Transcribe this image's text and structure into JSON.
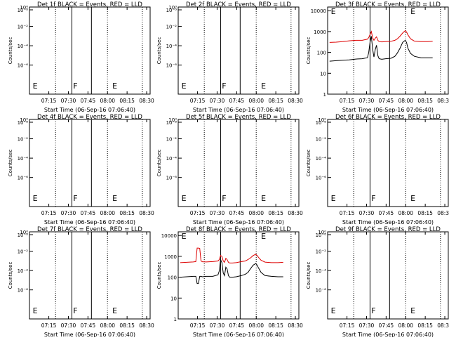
{
  "common": {
    "ylabel": "Counts/sec",
    "xlabel": "Start Time (06-Sep-16 07:06:40)",
    "xticks": [
      "07:15",
      "07:30",
      "07:45",
      "08:00",
      "08:15",
      "08:30"
    ],
    "log_ticks": [
      "10⁻⁸",
      "10⁻⁶",
      "10⁻⁴",
      "10⁻²",
      "10⁰"
    ],
    "marker_E": "E",
    "marker_F": "F",
    "colors": {
      "events": "#000000",
      "lld": "#dd0000"
    }
  },
  "chart_data": [
    {
      "type": "line",
      "title": "Det 1f BLACK = Events, RED = LLD",
      "xlabel": "Start Time (06-Sep-16 07:06:40)",
      "ylabel": "Counts/sec",
      "empty": true,
      "ylim": [
        1e-09,
        1
      ],
      "yscale": "log",
      "series": [],
      "solid_lines_min": [
        26.0,
        41.0
      ],
      "dotted_lines_min": [
        13.5,
        53.3
      ],
      "end_dotted_min": 80.0,
      "E_positions_min": [
        -4,
        57
      ],
      "F_position_min": 27
    },
    {
      "type": "line",
      "title": "Det 2f BLACK = Events, RED = LLD",
      "xlabel": "Start Time (06-Sep-16 07:06:40)",
      "ylabel": "Counts/sec",
      "empty": true,
      "ylim": [
        1e-09,
        1
      ],
      "yscale": "log",
      "series": [],
      "solid_lines_min": [
        26.0,
        41.0
      ],
      "dotted_lines_min": [
        13.5,
        53.3
      ],
      "end_dotted_min": 80.0,
      "E_positions_min": [
        -4,
        57
      ],
      "F_position_min": 27
    },
    {
      "type": "line",
      "title": "Det 3f BLACK = Events, RED = LLD",
      "xlabel": "Start Time (06-Sep-16 07:06:40)",
      "ylabel": "Counts/sec",
      "empty": false,
      "ylim": [
        1,
        15000
      ],
      "yscale": "log",
      "y_ticks": [
        "1",
        "10",
        "100",
        "1000",
        "10000"
      ],
      "solid_lines_min": [
        26.0,
        41.0
      ],
      "dotted_lines_min": [
        13.5,
        53.3
      ],
      "end_dotted_min": 80.0,
      "E_positions_min": [
        -4,
        57
      ],
      "F_position_min": 27,
      "x": [
        -5,
        0,
        5,
        10,
        15,
        20,
        24,
        25,
        26,
        27,
        28,
        29,
        30,
        31,
        32,
        33,
        35,
        38,
        42,
        45,
        47,
        49,
        51,
        53,
        54,
        55,
        57,
        60,
        65,
        70,
        74
      ],
      "series": [
        {
          "color": "#dd0000",
          "values": [
            300,
            310,
            330,
            360,
            380,
            380,
            430,
            520,
            720,
            1000,
            500,
            380,
            480,
            560,
            380,
            330,
            320,
            330,
            340,
            380,
            450,
            600,
            850,
            1100,
            950,
            700,
            450,
            350,
            330,
            330,
            340
          ]
        },
        {
          "color": "#000000",
          "values": [
            38,
            40,
            42,
            44,
            48,
            50,
            56,
            100,
            300,
            600,
            140,
            60,
            140,
            220,
            70,
            50,
            47,
            50,
            52,
            65,
            95,
            160,
            300,
            380,
            300,
            160,
            90,
            65,
            55,
            55,
            55
          ]
        }
      ]
    },
    {
      "type": "line",
      "title": "Det 4f BLACK = Events, RED = LLD",
      "xlabel": "Start Time (06-Sep-16 07:06:40)",
      "ylabel": "Counts/sec",
      "empty": true,
      "ylim": [
        1e-09,
        1
      ],
      "yscale": "log",
      "series": [],
      "solid_lines_min": [
        26.0,
        41.0
      ],
      "dotted_lines_min": [
        13.5,
        53.3
      ],
      "end_dotted_min": 80.0,
      "E_positions_min": [
        -4,
        57
      ],
      "F_position_min": 27
    },
    {
      "type": "line",
      "title": "Det 5f BLACK = Events, RED = LLD",
      "xlabel": "Start Time (06-Sep-16 07:06:40)",
      "ylabel": "Counts/sec",
      "empty": true,
      "ylim": [
        1e-09,
        1
      ],
      "yscale": "log",
      "series": [],
      "solid_lines_min": [
        26.0,
        41.0
      ],
      "dotted_lines_min": [
        13.5,
        53.3
      ],
      "end_dotted_min": 80.0,
      "E_positions_min": [
        -4,
        57
      ],
      "F_position_min": 27
    },
    {
      "type": "line",
      "title": "Det 6f BLACK = Events, RED = LLD",
      "xlabel": "Start Time (06-Sep-16 07:06:40)",
      "ylabel": "Counts/sec",
      "empty": true,
      "ylim": [
        1e-09,
        1
      ],
      "yscale": "log",
      "series": [],
      "solid_lines_min": [
        26.0,
        41.0
      ],
      "dotted_lines_min": [
        13.5,
        53.3
      ],
      "end_dotted_min": 80.0,
      "E_positions_min": [
        -4,
        57
      ],
      "F_position_min": 27
    },
    {
      "type": "line",
      "title": "Det 7f BLACK = Events, RED = LLD",
      "xlabel": "Start Time (06-Sep-16 07:06:40)",
      "ylabel": "Counts/sec",
      "empty": true,
      "ylim": [
        1e-09,
        1
      ],
      "yscale": "log",
      "series": [],
      "solid_lines_min": [
        26.0,
        41.0
      ],
      "dotted_lines_min": [
        13.5,
        53.3
      ],
      "end_dotted_min": 80.0,
      "E_positions_min": [
        -4,
        57
      ],
      "F_position_min": 27
    },
    {
      "type": "line",
      "title": "Det 8f BLACK = Events, RED = LLD",
      "xlabel": "Start Time (06-Sep-16 07:06:40)",
      "ylabel": "Counts/sec",
      "empty": false,
      "ylim": [
        1,
        15000
      ],
      "yscale": "log",
      "y_ticks": [
        "1",
        "10",
        "100",
        "1000",
        "10000"
      ],
      "solid_lines_min": [
        26.0,
        41.0
      ],
      "dotted_lines_min": [
        13.5,
        53.3
      ],
      "end_dotted_min": 80.0,
      "E_positions_min": [
        -4,
        57
      ],
      "F_position_min": 27,
      "x": [
        -5,
        0,
        5,
        7,
        8,
        9,
        10,
        11,
        12,
        15,
        20,
        24,
        25,
        26,
        27,
        28,
        29,
        30,
        31,
        32,
        33,
        35,
        38,
        42,
        45,
        47,
        49,
        51,
        53,
        54,
        55,
        57,
        60,
        65,
        70,
        74
      ],
      "series": [
        {
          "color": "#dd0000",
          "values": [
            500,
            520,
            540,
            560,
            2500,
            2500,
            2400,
            600,
            550,
            540,
            560,
            600,
            700,
            1100,
            1000,
            600,
            520,
            800,
            700,
            520,
            480,
            480,
            500,
            560,
            600,
            700,
            850,
            1100,
            1250,
            1100,
            900,
            650,
            530,
            500,
            500,
            520
          ]
        },
        {
          "color": "#000000",
          "values": [
            100,
            105,
            110,
            110,
            50,
            50,
            110,
            110,
            105,
            110,
            110,
            130,
            200,
            700,
            500,
            160,
            120,
            300,
            250,
            120,
            100,
            100,
            105,
            120,
            140,
            170,
            260,
            380,
            450,
            380,
            280,
            170,
            120,
            110,
            105,
            105
          ]
        }
      ]
    },
    {
      "type": "line",
      "title": "Det 9f BLACK = Events, RED = LLD",
      "xlabel": "Start Time (06-Sep-16 07:06:40)",
      "ylabel": "Counts/sec",
      "empty": true,
      "ylim": [
        1e-09,
        1
      ],
      "yscale": "log",
      "series": [],
      "solid_lines_min": [
        26.0,
        41.0
      ],
      "dotted_lines_min": [
        13.5,
        53.3
      ],
      "end_dotted_min": 80.0,
      "E_positions_min": [
        -4,
        57
      ],
      "F_position_min": 27
    }
  ]
}
